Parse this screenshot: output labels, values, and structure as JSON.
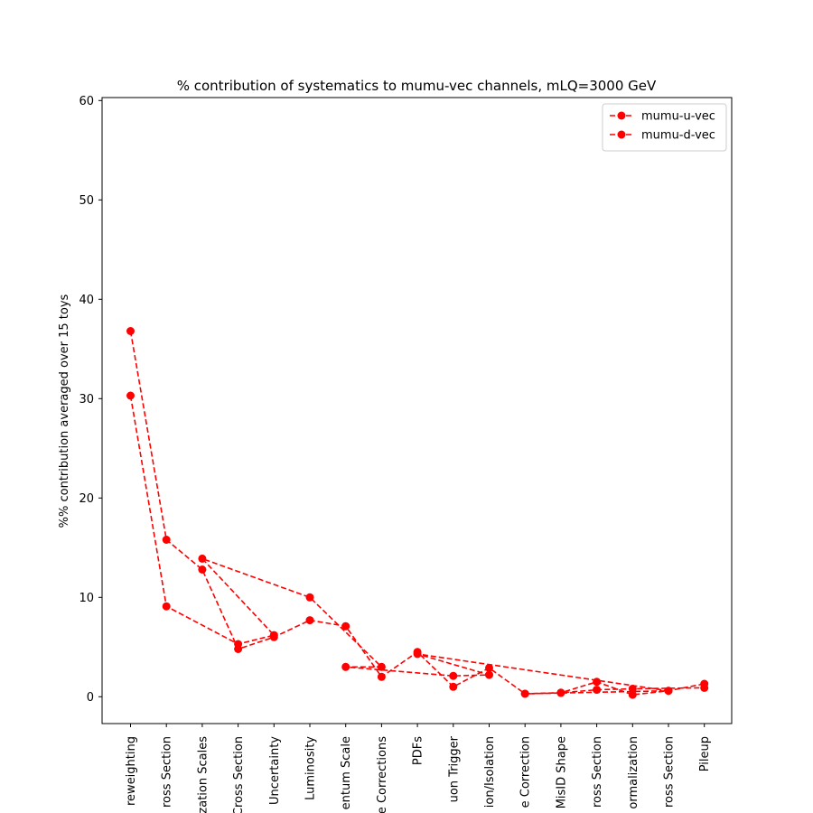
{
  "chart_data": {
    "type": "line",
    "title": "% contribution of systematics to mumu-vec channels, mLQ=3000 GeV",
    "xlabel": "",
    "ylabel": "%% contribution averaged over 15 toys",
    "ylim": [
      -2.7,
      60.3
    ],
    "yticks": [
      0,
      10,
      20,
      30,
      40,
      50,
      60
    ],
    "grid": false,
    "legend_position": "top-right",
    "categories": [
      "reweighting",
      "ross Section",
      "zation Scales",
      "Cross Section",
      "Uncertainty",
      "Luminosity",
      "entum Scale",
      "e Corrections",
      "PDFs",
      "uon Trigger",
      "ion/Isolation",
      "e Correction",
      "MisID Shape",
      "ross Section",
      "ormalization",
      "ross Section",
      "Pileup"
    ],
    "series": [
      {
        "name": "mumu-u-vec",
        "color": "#ff0000",
        "points": [
          {
            "x": 0,
            "y": 36.8
          },
          {
            "x": 1,
            "y": 15.8
          },
          {
            "x": 2,
            "y": 12.8
          },
          {
            "x": 3,
            "y": 4.8
          },
          {
            "x": 4,
            "y": 6.0
          },
          {
            "x": 5,
            "y": 7.7
          },
          {
            "x": 6,
            "y": 7.1
          },
          {
            "x": 7,
            "y": 2.0
          },
          {
            "x": 8,
            "y": 4.5
          },
          {
            "x": 9,
            "y": 1.0
          },
          {
            "x": 10,
            "y": 2.9
          },
          {
            "x": 11,
            "y": 0.3
          },
          {
            "x": 12,
            "y": 0.4
          },
          {
            "x": 13,
            "y": 1.5
          },
          {
            "x": 14,
            "y": 0.2
          },
          {
            "x": 15,
            "y": 0.6
          },
          {
            "x": 16,
            "y": 1.3
          }
        ]
      },
      {
        "name": "mumu-d-vec",
        "color": "#ff0000",
        "points": [
          {
            "x": 0,
            "y": 30.3
          },
          {
            "x": 1,
            "y": 9.1
          },
          {
            "x": 3,
            "y": 5.3
          },
          {
            "x": 4,
            "y": 6.2
          },
          {
            "x": 2,
            "y": 13.9
          },
          {
            "x": 5,
            "y": 10.0
          },
          {
            "x": 7,
            "y": 3.0
          },
          {
            "x": 6,
            "y": 3.0
          },
          {
            "x": 9,
            "y": 2.1
          },
          {
            "x": 10,
            "y": 2.2
          },
          {
            "x": 8,
            "y": 4.3
          },
          {
            "x": 15,
            "y": 0.6
          },
          {
            "x": 11,
            "y": 0.3
          },
          {
            "x": 12,
            "y": 0.4
          },
          {
            "x": 13,
            "y": 0.7
          },
          {
            "x": 14,
            "y": 0.8
          },
          {
            "x": 16,
            "y": 0.9
          }
        ]
      }
    ]
  }
}
